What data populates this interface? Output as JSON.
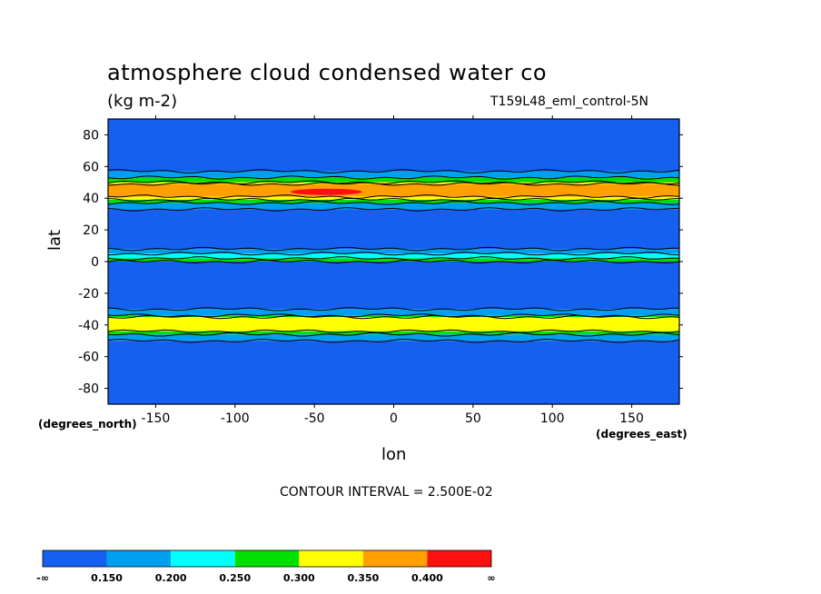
{
  "chart_data": {
    "type": "heatmap",
    "title": "atmosphere cloud condensed water co",
    "units": "(kg m-2)",
    "run_label": "T159L48_eml_control-5N",
    "xlabel": "lon",
    "ylabel": "lat",
    "x_units": "(degrees_east)",
    "y_units": "(degrees_north)",
    "xlim": [
      -180,
      180
    ],
    "ylim": [
      -90,
      90
    ],
    "x_ticks": [
      -150,
      -100,
      -50,
      0,
      50,
      100,
      150
    ],
    "y_ticks": [
      80,
      60,
      40,
      20,
      0,
      -20,
      -40,
      -60,
      -80
    ],
    "x_tick_labels": [
      "-150",
      "-100",
      "-50",
      "0",
      "50",
      "100",
      "150"
    ],
    "y_tick_labels": [
      "80",
      "60",
      "40",
      "20",
      "0",
      "-20",
      "-40",
      "-60",
      "-80"
    ],
    "contour_interval_text": "CONTOUR INTERVAL = 2.500E-02",
    "colorbar": {
      "boundaries": [
        "-∞",
        "0.150",
        "0.200",
        "0.250",
        "0.300",
        "0.350",
        "0.400",
        "∞"
      ],
      "colors": [
        "#1560f0",
        "#00a0f0",
        "#00ffff",
        "#00e000",
        "#ffff00",
        "#ffa000",
        "#ff1010"
      ]
    },
    "zonal_bands": [
      {
        "lat_from": 90,
        "lat_to": 57,
        "level": 0
      },
      {
        "lat_from": 57,
        "lat_to": 53,
        "level": 1
      },
      {
        "lat_from": 53,
        "lat_to": 50,
        "level": 3
      },
      {
        "lat_from": 50,
        "lat_to": 49,
        "level": 4
      },
      {
        "lat_from": 49,
        "lat_to": 41,
        "level": 5
      },
      {
        "lat_from": 41,
        "lat_to": 39,
        "level": 4
      },
      {
        "lat_from": 39,
        "lat_to": 37,
        "level": 3
      },
      {
        "lat_from": 37,
        "lat_to": 33,
        "level": 1
      },
      {
        "lat_from": 33,
        "lat_to": 8,
        "level": 0
      },
      {
        "lat_from": 8,
        "lat_to": 5,
        "level": 1
      },
      {
        "lat_from": 5,
        "lat_to": 2,
        "level": 2
      },
      {
        "lat_from": 2,
        "lat_to": 0,
        "level": 3
      },
      {
        "lat_from": 0,
        "lat_to": -30,
        "level": 0
      },
      {
        "lat_from": -30,
        "lat_to": -34,
        "level": 1
      },
      {
        "lat_from": -34,
        "lat_to": -35,
        "level": 3
      },
      {
        "lat_from": -35,
        "lat_to": -44,
        "level": 4
      },
      {
        "lat_from": -44,
        "lat_to": -46,
        "level": 3
      },
      {
        "lat_from": -46,
        "lat_to": -50,
        "level": 1
      },
      {
        "lat_from": -50,
        "lat_to": -90,
        "level": 0
      }
    ],
    "local_maxima": [
      {
        "lon_from": -65,
        "lon_to": -20,
        "lat_from": 46,
        "lat_to": 42,
        "level": 6
      },
      {
        "lon_from": 20,
        "lon_to": 60,
        "lat_from": 47,
        "lat_to": 43,
        "level": 5
      },
      {
        "lon_from": -10,
        "lon_to": 30,
        "lat_from": -37,
        "lat_to": -41,
        "level": 4
      }
    ],
    "grid": false
  }
}
